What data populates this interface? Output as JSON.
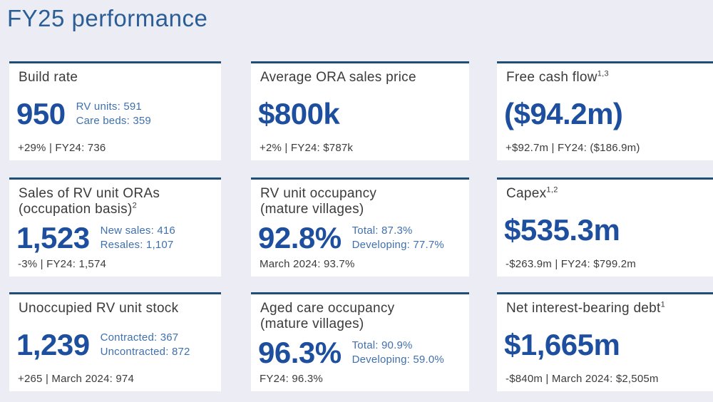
{
  "page": {
    "title": "FY25 performance",
    "colors": {
      "background": "#ecedf4",
      "card_background": "#ffffff",
      "card_top_border": "#1f4e79",
      "heading": "#2b5d96",
      "value": "#1d4f9e",
      "sub_text": "#4070ad",
      "body_text": "#3b3b3b"
    }
  },
  "cards": [
    {
      "title_line1": "Build rate",
      "value": "950",
      "sub_lines": [
        "RV units: 591",
        "Care beds: 359"
      ],
      "footnote": "+29% | FY24: 736"
    },
    {
      "title_line1": "Average ORA sales price",
      "value": "$800k",
      "footnote": "+2% | FY24: $787k"
    },
    {
      "title_line1": "Free cash flow",
      "sup1": "1,3",
      "value": "($94.2m)",
      "footnote": "+$92.7m | FY24: ($186.9m)"
    },
    {
      "title_line1": "Sales of RV unit ORAs",
      "title_line2": "(occupation basis)",
      "sup2": "2",
      "value": "1,523",
      "sub_lines": [
        "New sales: 416",
        "Resales: 1,107"
      ],
      "footnote": "-3% | FY24: 1,574"
    },
    {
      "title_line1": "RV unit occupancy",
      "title_line2": "(mature villages)",
      "value": "92.8%",
      "sub_lines": [
        "Total: 87.3%",
        "Developing: 77.7%"
      ],
      "footnote": "March 2024: 93.7%"
    },
    {
      "title_line1": "Capex",
      "sup1": "1,2",
      "value": "$535.3m",
      "footnote": "-$263.9m | FY24: $799.2m"
    },
    {
      "title_line1": "Unoccupied RV unit stock",
      "value": "1,239",
      "sub_lines": [
        "Contracted: 367",
        "Uncontracted: 872"
      ],
      "footnote": "+265 | March 2024: 974"
    },
    {
      "title_line1": "Aged care occupancy",
      "title_line2": "(mature villages)",
      "value": "96.3%",
      "sub_lines": [
        "Total: 90.9%",
        "Developing: 59.0%"
      ],
      "footnote": "FY24: 96.3%"
    },
    {
      "title_line1": "Net interest-bearing debt",
      "sup1": "1",
      "value": "$1,665m",
      "footnote": "-$840m | March 2024: $2,505m"
    }
  ]
}
